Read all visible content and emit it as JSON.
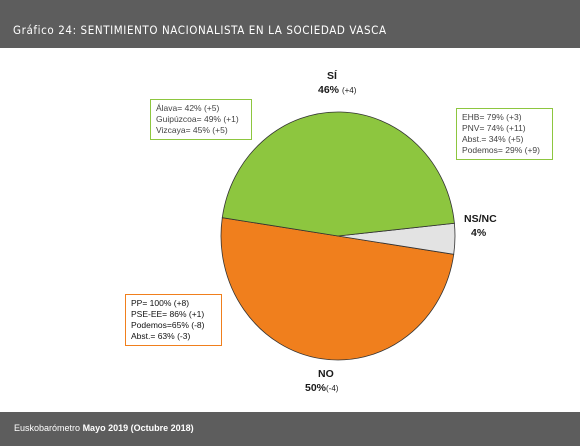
{
  "header": {
    "title": "Gráfico 24: SENTIMIENTO NACIONALISTA EN LA SOCIEDAD VASCA"
  },
  "footer": {
    "source_prefix": "Euskobarómetro",
    "source_date": "Mayo 2019 (Octubre 2018)"
  },
  "chart_data": {
    "type": "pie",
    "title": "",
    "slices": [
      {
        "label": "SÍ",
        "value": 46,
        "change": "(+4)",
        "color": "#8dc63f"
      },
      {
        "label": "NS/NC",
        "value": 4,
        "change": "",
        "color": "#e3e3e3"
      },
      {
        "label": "NO",
        "value": 50,
        "change": "(-4)",
        "color": "#f07f1d"
      }
    ],
    "annotations": {
      "provinces": [
        "Álava= 42% (+5)",
        "Guipúzcoa= 49% (+1)",
        "Vizcaya= 45% (+5)"
      ],
      "parties_si": [
        "EHB= 79% (+3)",
        "PNV= 74% (+11)",
        "Abst.= 34% (+5)",
        "Podemos= 29% (+9)"
      ],
      "parties_no": [
        "PP= 100% (+8)",
        "PSE-EE= 86% (+1)",
        "Podemos=65% (-8)",
        "Abst.= 63% (-3)"
      ]
    }
  }
}
